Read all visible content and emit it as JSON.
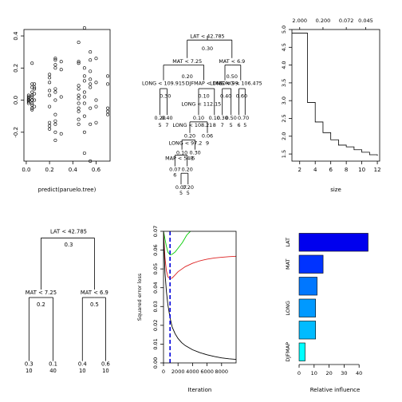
{
  "chart_data": [
    {
      "type": "scatter",
      "xlabel": "predict(paruelo.tree)",
      "ylabel": "",
      "xlim": [
        -0.02,
        0.72
      ],
      "ylim": [
        -0.38,
        0.44
      ],
      "xticks": [
        "0.0",
        "0.2",
        "0.4",
        "0.6"
      ],
      "yticks": [
        "-0.2",
        "0.0",
        "0.2",
        "0.4"
      ],
      "x_groups": [
        0.02,
        0.05,
        0.07,
        0.2,
        0.25,
        0.3,
        0.45,
        0.5,
        0.55,
        0.6,
        0.7
      ],
      "y": [
        [
          0.0,
          0.03,
          -0.01,
          0.02,
          -0.02,
          0.0,
          0.01
        ],
        [
          0.05,
          -0.05,
          0.0,
          0.03,
          -0.03,
          0.08,
          0.23,
          -0.02,
          0.1,
          -0.06,
          0.0,
          0.02
        ],
        [
          0.1,
          0.07,
          -0.04,
          0.0,
          0.04,
          0.08
        ],
        [
          0.14,
          0.11,
          0.06,
          -0.14,
          -0.16,
          -0.04,
          0.03,
          0.16,
          -0.18
        ],
        [
          0.25,
          0.2,
          0.22,
          0.0,
          -0.13,
          -0.15,
          0.07,
          0.05,
          -0.09,
          -0.2,
          0.26,
          -0.25
        ],
        [
          0.24,
          0.19,
          -0.21,
          0.02
        ],
        [
          0.36,
          0.23,
          0.24,
          0.07,
          0.03,
          -0.02,
          -0.07,
          -0.12,
          -0.15,
          0.09,
          0.01,
          -0.05
        ],
        [
          0.45,
          0.2,
          0.15,
          -0.1,
          -0.33,
          0.05,
          -0.02,
          -0.2,
          0.12,
          0.02
        ],
        [
          0.3,
          0.25,
          0.18,
          0.13,
          0.1,
          -0.05,
          -0.15,
          0.08,
          -0.38
        ],
        [
          0.26,
          0.11,
          -0.14,
          -0.04,
          0.0
        ],
        [
          0.15,
          0.1,
          -0.05,
          -0.07,
          -0.09
        ]
      ]
    },
    {
      "type": "tree",
      "labels": [
        {
          "text": "LAT < 42.785",
          "x": 0.5,
          "y": 0.04
        },
        {
          "text": "0.30",
          "x": 0.5,
          "y": 0.13
        },
        {
          "text": "MAT < 7.25",
          "x": 0.27,
          "y": 0.22
        },
        {
          "text": "MAT < 6.9",
          "x": 0.78,
          "y": 0.22
        },
        {
          "text": "0.20",
          "x": 0.27,
          "y": 0.33
        },
        {
          "text": "0.50",
          "x": 0.78,
          "y": 0.33
        },
        {
          "text": "LONG < 109.915",
          "x": 0.0,
          "y": 0.38
        },
        {
          "text": "DJFMAP < 166",
          "x": 0.46,
          "y": 0.38
        },
        {
          "text": "LONG < 99.",
          "x": 0.7,
          "y": 0.38
        },
        {
          "text": "LONG < 106.475",
          "x": 0.88,
          "y": 0.38
        },
        {
          "text": "0.30",
          "x": 0.02,
          "y": 0.47
        },
        {
          "text": "0.10",
          "x": 0.46,
          "y": 0.47
        },
        {
          "text": "LONG < 112.15",
          "x": 0.43,
          "y": 0.53
        },
        {
          "text": "0.40",
          "x": 0.71,
          "y": 0.47
        },
        {
          "text": "0.60",
          "x": 0.89,
          "y": 0.47
        },
        {
          "text": "0.20",
          "x": -0.04,
          "y": 0.63
        },
        {
          "text": "0.40",
          "x": 0.04,
          "y": 0.63
        },
        {
          "text": "5",
          "x": -0.04,
          "y": 0.68
        },
        {
          "text": "7",
          "x": 0.04,
          "y": 0.68
        },
        {
          "text": "0.10",
          "x": 0.4,
          "y": 0.63
        },
        {
          "text": "LONG < 108.21",
          "x": 0.33,
          "y": 0.68
        },
        {
          "text": "0.10",
          "x": 0.58,
          "y": 0.63
        },
        {
          "text": "0.30",
          "x": 0.67,
          "y": 0.63
        },
        {
          "text": "0.50",
          "x": 0.77,
          "y": 0.63
        },
        {
          "text": "0.70",
          "x": 0.91,
          "y": 0.63
        },
        {
          "text": "8",
          "x": 0.58,
          "y": 0.68
        },
        {
          "text": "7",
          "x": 0.67,
          "y": 0.68
        },
        {
          "text": "5",
          "x": 0.77,
          "y": 0.68
        },
        {
          "text": "6",
          "x": 0.86,
          "y": 0.68
        },
        {
          "text": "5",
          "x": 0.93,
          "y": 0.68
        },
        {
          "text": "0.20",
          "x": 0.3,
          "y": 0.76
        },
        {
          "text": "0.06",
          "x": 0.5,
          "y": 0.76
        },
        {
          "text": "LONG < 97.2",
          "x": 0.25,
          "y": 0.81
        },
        {
          "text": "9",
          "x": 0.5,
          "y": 0.81
        },
        {
          "text": "0.10",
          "x": 0.21,
          "y": 0.88
        },
        {
          "text": "0.30",
          "x": 0.36,
          "y": 0.88
        },
        {
          "text": "MAP < 548",
          "x": 0.18,
          "y": 0.92
        },
        {
          "text": "5",
          "x": 0.34,
          "y": 0.92
        },
        {
          "text": "0.07",
          "x": 0.13,
          "y": 1.0
        },
        {
          "text": "0.20",
          "x": 0.27,
          "y": 1.0
        },
        {
          "text": "6",
          "x": 0.13,
          "y": 1.04
        },
        {
          "text": "0.07",
          "x": 0.2,
          "y": 1.13
        },
        {
          "text": "0.20",
          "x": 0.28,
          "y": 1.13
        },
        {
          "text": "5",
          "x": 0.2,
          "y": 1.17
        },
        {
          "text": "5",
          "x": 0.28,
          "y": 1.17
        }
      ]
    },
    {
      "type": "line",
      "step": true,
      "xlabel": "size",
      "ylabel": "",
      "xlim": [
        1,
        12.3
      ],
      "ylim": [
        1.3,
        5.0
      ],
      "xticks": [
        "2",
        "4",
        "6",
        "8",
        "10",
        "12"
      ],
      "yticks": [
        "1.5",
        "2.0",
        "2.5",
        "3.0",
        "3.5",
        "4.0",
        "4.5",
        "5.0"
      ],
      "top_ticks": [
        {
          "x": 2,
          "label": "2.000"
        },
        {
          "x": 5,
          "label": "0.200"
        },
        {
          "x": 8,
          "label": "0.072"
        },
        {
          "x": 10.5,
          "label": "0.045"
        }
      ],
      "x": [
        1,
        2,
        3,
        4,
        5,
        6,
        7,
        8,
        9,
        10,
        11,
        12
      ],
      "values": [
        4.9,
        4.9,
        2.95,
        2.4,
        2.1,
        1.9,
        1.75,
        1.7,
        1.62,
        1.55,
        1.48,
        1.45
      ]
    },
    {
      "type": "tree",
      "labels": [
        {
          "text": "LAT < 42.785",
          "x": 0.5,
          "y": 0.0
        },
        {
          "text": "0.3",
          "x": 0.5,
          "y": 0.1
        },
        {
          "text": "MAT < 7.25",
          "x": 0.18,
          "y": 0.46
        },
        {
          "text": "0.2",
          "x": 0.18,
          "y": 0.55
        },
        {
          "text": "MAT < 6.9",
          "x": 0.8,
          "y": 0.46
        },
        {
          "text": "0.5",
          "x": 0.8,
          "y": 0.55
        },
        {
          "text": "0.3",
          "x": 0.04,
          "y": 1.0
        },
        {
          "text": "10",
          "x": 0.04,
          "y": 1.05
        },
        {
          "text": "0.1",
          "x": 0.32,
          "y": 1.0
        },
        {
          "text": "40",
          "x": 0.32,
          "y": 1.05
        },
        {
          "text": "0.4",
          "x": 0.66,
          "y": 1.0
        },
        {
          "text": "10",
          "x": 0.66,
          "y": 1.05
        },
        {
          "text": "0.6",
          "x": 0.93,
          "y": 1.0
        },
        {
          "text": "10",
          "x": 0.93,
          "y": 1.05
        }
      ]
    },
    {
      "type": "line",
      "xlabel": "Iteration",
      "ylabel": "Squared error loss",
      "xlim": [
        0,
        10000
      ],
      "ylim": [
        0,
        0.07
      ],
      "xticks": [
        "0",
        "2000",
        "4000",
        "6000",
        "8000"
      ],
      "yticks": [
        "0.00",
        "0.01",
        "0.02",
        "0.03",
        "0.04",
        "0.05",
        "0.06",
        "0.07"
      ],
      "vline": 900,
      "series": [
        {
          "color": "#00cc00",
          "x": [
            0,
            200,
            400,
            600,
            900,
            1200,
            1600,
            2000,
            2600,
            3200,
            3700
          ],
          "values": [
            0.07,
            0.066,
            0.062,
            0.059,
            0.0575,
            0.0578,
            0.059,
            0.061,
            0.064,
            0.068,
            0.07
          ]
        },
        {
          "color": "#dd2222",
          "x": [
            0,
            200,
            400,
            600,
            900,
            1200,
            1600,
            2000,
            3000,
            4000,
            5000,
            6000,
            7000,
            8000,
            9000,
            10000
          ],
          "values": [
            0.07,
            0.056,
            0.049,
            0.0458,
            0.0448,
            0.0452,
            0.0468,
            0.0485,
            0.0512,
            0.053,
            0.0543,
            0.0552,
            0.0558,
            0.0562,
            0.0565,
            0.0567
          ]
        },
        {
          "color": "#000000",
          "x": [
            0,
            200,
            400,
            600,
            900,
            1200,
            1600,
            2000,
            2500,
            3000,
            4000,
            5000,
            6000,
            7000,
            8000,
            9000,
            10000
          ],
          "values": [
            0.07,
            0.048,
            0.038,
            0.031,
            0.024,
            0.019,
            0.0155,
            0.013,
            0.0108,
            0.0092,
            0.007,
            0.0055,
            0.0043,
            0.0034,
            0.0027,
            0.0022,
            0.0019
          ]
        }
      ]
    },
    {
      "type": "bar",
      "orientation": "horizontal",
      "xlabel": "Relative influence",
      "ylabel": "",
      "xlim": [
        0,
        50
      ],
      "xticks": [
        "0",
        "10",
        "20",
        "30",
        "40"
      ],
      "categories": [
        "LAT",
        "MAT",
        "",
        "LONG",
        "",
        "DJFMAP"
      ],
      "values": [
        46,
        16,
        12,
        11,
        11,
        4
      ],
      "colors": [
        "#0000ee",
        "#0033ff",
        "#0077ff",
        "#0099ff",
        "#00bbff",
        "#00ffff"
      ]
    }
  ]
}
